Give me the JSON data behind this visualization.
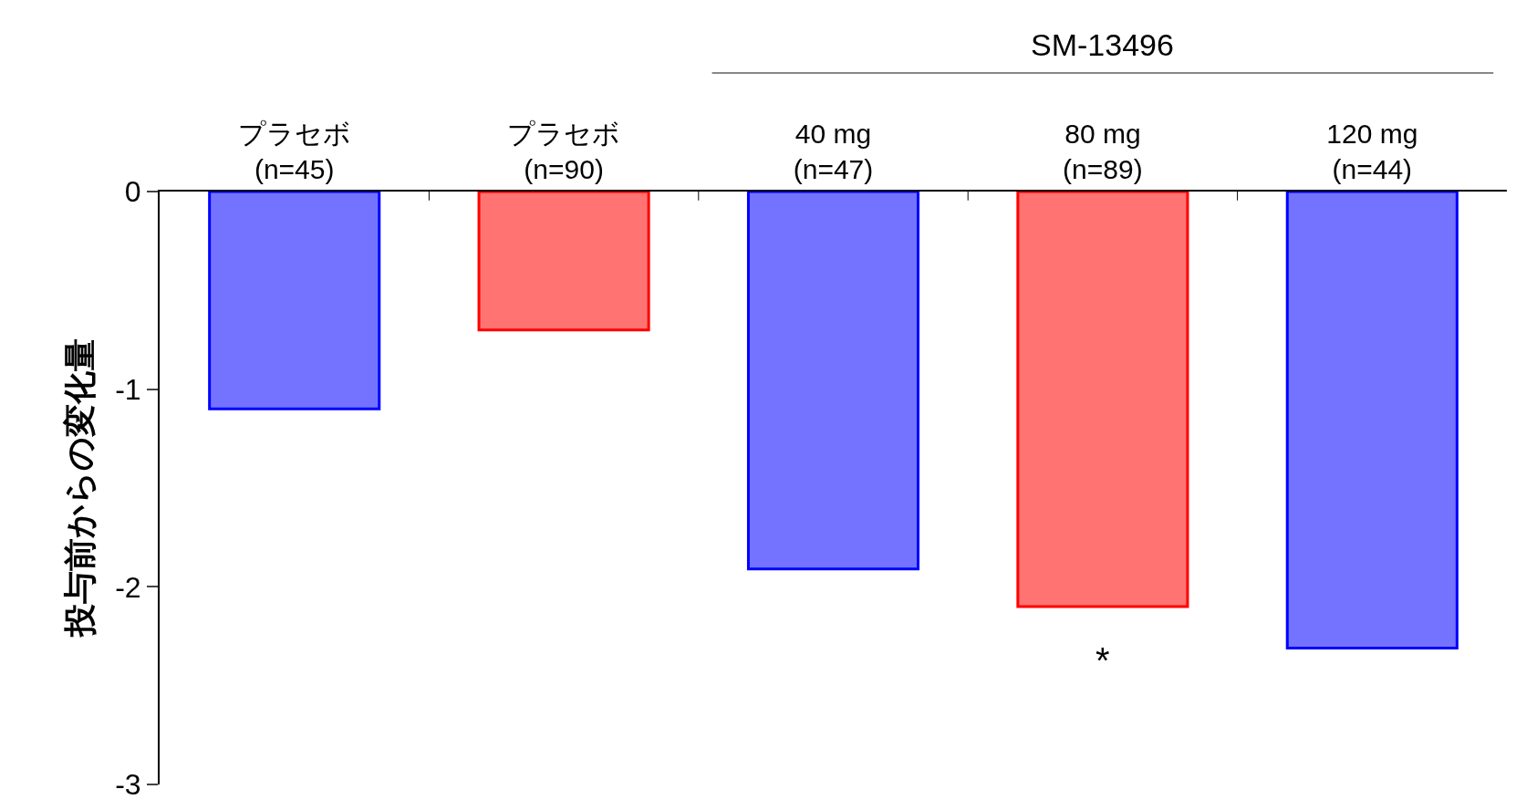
{
  "chart_data": {
    "type": "bar",
    "ylabel": "投与前からの変化量",
    "categories": [
      "プラセボ\n(n=45)",
      "プラセボ\n(n=90)",
      "40 mg\n(n=47)",
      "80 mg\n(n=89)",
      "120 mg\n(n=44)"
    ],
    "values": [
      -1.1,
      -0.7,
      -1.91,
      -2.1,
      -2.31
    ],
    "colors": [
      "#0000ff",
      "#ff0000",
      "#0000ff",
      "#ff0000",
      "#0000ff"
    ],
    "ylim": [
      -3,
      0
    ],
    "yticks": [
      -3,
      -2,
      -1,
      0
    ],
    "annotations": [
      "SM-13496",
      "*"
    ]
  }
}
